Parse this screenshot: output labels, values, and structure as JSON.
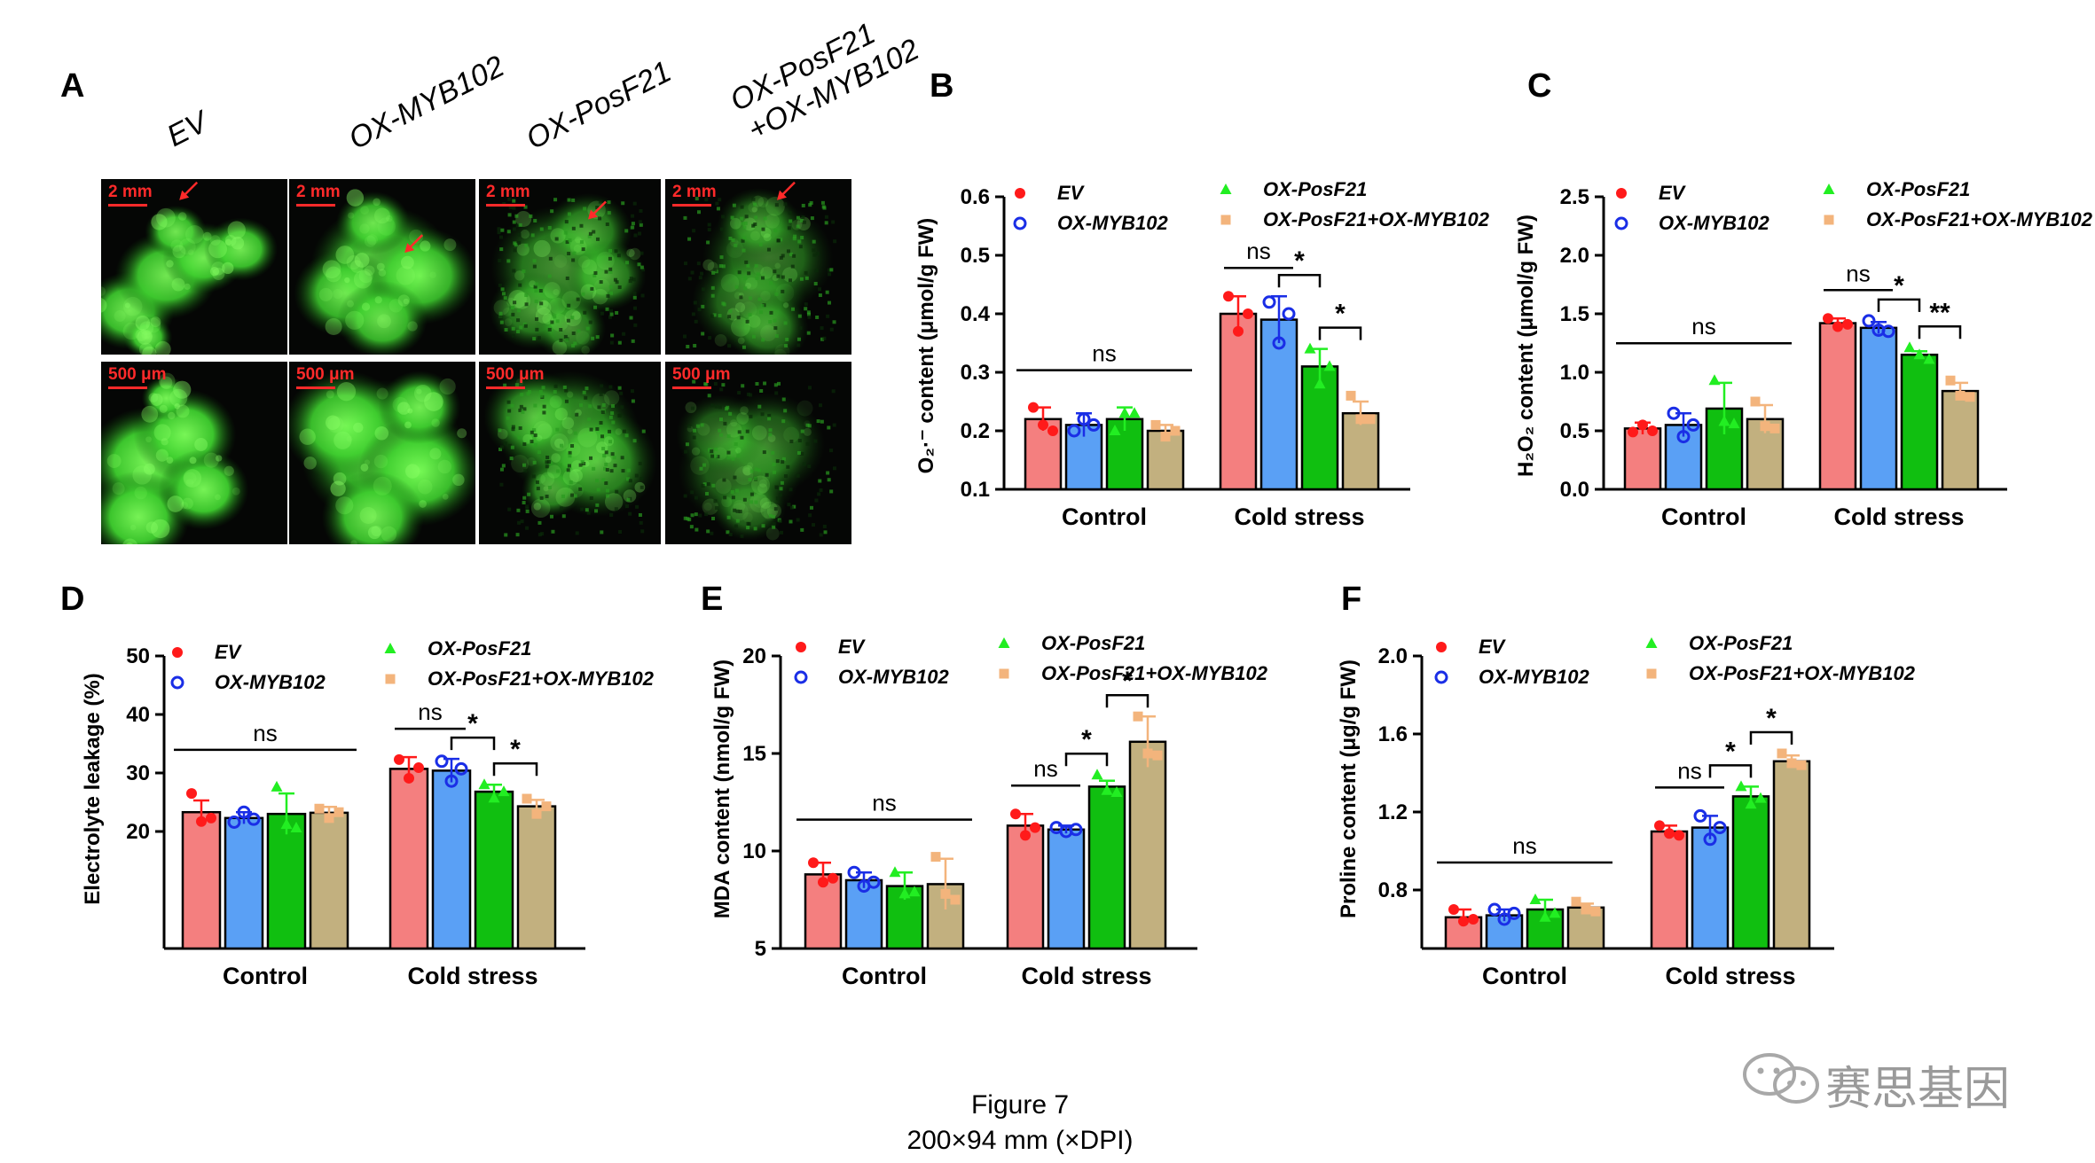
{
  "panels": {
    "A": "A",
    "B": "B",
    "C": "C",
    "D": "D",
    "E": "E",
    "F": "F"
  },
  "micrographs": {
    "genotypes": [
      "EV",
      "OX-MYB102",
      "OX-PosF21",
      "OX-PosF21\n+OX-MYB102"
    ],
    "genotype_lines": [
      [
        "EV"
      ],
      [
        "OX-MYB102"
      ],
      [
        "OX-PosF21"
      ],
      [
        "OX-PosF21",
        "+OX-MYB102"
      ]
    ],
    "scale_top": "2 mm",
    "scale_bottom": "500 μm",
    "colors": {
      "fluorescence": "#3fcf2f",
      "background": "#050605",
      "scale": "#ff2a2a"
    }
  },
  "legend": {
    "ev": "EV",
    "myb": "OX-MYB102",
    "posf": "OX-PosF21",
    "combo": "OX-PosF21+OX-MYB102"
  },
  "series_colors": {
    "ev": {
      "bar": "#f47f7f",
      "marker": "#ff1a1a"
    },
    "myb": {
      "bar": "#5aa0f5",
      "marker": "#1a2ee6"
    },
    "posf": {
      "bar": "#10bf10",
      "marker": "#22ee22"
    },
    "combo": {
      "bar": "#c2b07f",
      "marker": "#f3b47c"
    }
  },
  "chart_data": [
    {
      "id": "B",
      "type": "bar",
      "ylabel": "O₂·⁻ content (μmol/g FW)",
      "categories": [
        "Control",
        "Cold stress"
      ],
      "ylim": [
        0.1,
        0.6
      ],
      "yticks": [
        "0.1",
        "0.2",
        "0.3",
        "0.4",
        "0.5",
        "0.6"
      ],
      "series": [
        {
          "name": "EV",
          "values": [
            0.22,
            0.4
          ],
          "errors": [
            0.02,
            0.03
          ],
          "points": [
            [
              0.24,
              0.21,
              0.2
            ],
            [
              0.43,
              0.37,
              0.4
            ]
          ]
        },
        {
          "name": "OX-MYB102",
          "values": [
            0.21,
            0.39
          ],
          "errors": [
            0.02,
            0.04
          ],
          "points": [
            [
              0.2,
              0.22,
              0.21
            ],
            [
              0.42,
              0.35,
              0.4
            ]
          ]
        },
        {
          "name": "OX-PosF21",
          "values": [
            0.22,
            0.31
          ],
          "errors": [
            0.02,
            0.03
          ],
          "points": [
            [
              0.2,
              0.23,
              0.23
            ],
            [
              0.34,
              0.28,
              0.31
            ]
          ]
        },
        {
          "name": "OX-PosF21+OX-MYB102",
          "values": [
            0.2,
            0.23
          ],
          "errors": [
            0.01,
            0.02
          ],
          "points": [
            [
              0.21,
              0.19,
              0.2
            ],
            [
              0.26,
              0.22,
              0.22
            ]
          ]
        }
      ],
      "annotations": [
        {
          "text": "ns",
          "group": "control"
        },
        {
          "text": "ns",
          "pair": [
            0,
            1
          ]
        },
        {
          "text": "*",
          "pair": [
            1,
            2
          ]
        },
        {
          "text": "*",
          "pair": [
            2,
            3
          ]
        }
      ]
    },
    {
      "id": "C",
      "type": "bar",
      "ylabel": "H₂O₂ content (μmol/g FW)",
      "categories": [
        "Control",
        "Cold stress"
      ],
      "ylim": [
        0.0,
        2.5
      ],
      "yticks": [
        "0.0",
        "0.5",
        "1.0",
        "1.5",
        "2.0",
        "2.5"
      ],
      "series": [
        {
          "name": "EV",
          "values": [
            0.52,
            1.42
          ],
          "errors": [
            0.05,
            0.04
          ],
          "points": [
            [
              0.49,
              0.55,
              0.5
            ],
            [
              1.46,
              1.39,
              1.41
            ]
          ]
        },
        {
          "name": "OX-MYB102",
          "values": [
            0.55,
            1.38
          ],
          "errors": [
            0.1,
            0.05
          ],
          "points": [
            [
              0.65,
              0.45,
              0.55
            ],
            [
              1.44,
              1.36,
              1.35
            ]
          ]
        },
        {
          "name": "OX-PosF21",
          "values": [
            0.69,
            1.15
          ],
          "errors": [
            0.22,
            0.03
          ],
          "points": [
            [
              0.93,
              0.58,
              0.56
            ],
            [
              1.21,
              1.15,
              1.11
            ]
          ]
        },
        {
          "name": "OX-PosF21+OX-MYB102",
          "values": [
            0.6,
            0.84
          ],
          "errors": [
            0.12,
            0.07
          ],
          "points": [
            [
              0.75,
              0.54,
              0.52
            ],
            [
              0.93,
              0.8,
              0.79
            ]
          ]
        }
      ],
      "annotations": [
        {
          "text": "ns",
          "group": "control"
        },
        {
          "text": "ns",
          "pair": [
            0,
            1
          ]
        },
        {
          "text": "*",
          "pair": [
            1,
            2
          ]
        },
        {
          "text": "**",
          "pair": [
            2,
            3
          ]
        }
      ]
    },
    {
      "id": "D",
      "type": "bar",
      "ylabel": "Electrolyte leakage (%)",
      "categories": [
        "Control",
        "Cold stress"
      ],
      "ylim": [
        0,
        50
      ],
      "yticks": [
        "20",
        "30",
        "40",
        "50"
      ],
      "tick_values": [
        20,
        30,
        40,
        50
      ],
      "series": [
        {
          "name": "EV",
          "values": [
            23.3,
            30.7
          ],
          "errors": [
            2.0,
            2.0
          ],
          "points": [
            [
              26.5,
              21.7,
              22.3
            ],
            [
              32.3,
              29.1,
              30.9
            ]
          ]
        },
        {
          "name": "OX-MYB102",
          "values": [
            22.3,
            30.4
          ],
          "errors": [
            1.0,
            2.0
          ],
          "points": [
            [
              21.6,
              23.3,
              22.1
            ],
            [
              32.0,
              28.6,
              30.7
            ]
          ]
        },
        {
          "name": "OX-PosF21",
          "values": [
            23.0,
            26.8
          ],
          "errors": [
            3.5,
            1.2
          ],
          "points": [
            [
              27.6,
              21.2,
              20.6
            ],
            [
              28.0,
              25.7,
              26.8
            ]
          ]
        },
        {
          "name": "OX-PosF21+OX-MYB102",
          "values": [
            23.2,
            24.3
          ],
          "errors": [
            1.0,
            1.1
          ],
          "points": [
            [
              23.9,
              22.3,
              23.3
            ],
            [
              25.6,
              23.0,
              24.3
            ]
          ]
        }
      ],
      "annotations": [
        {
          "text": "ns",
          "group": "control"
        },
        {
          "text": "ns",
          "pair": [
            0,
            1
          ]
        },
        {
          "text": "*",
          "pair": [
            1,
            2
          ]
        },
        {
          "text": "*",
          "pair": [
            2,
            3
          ]
        }
      ]
    },
    {
      "id": "E",
      "type": "bar",
      "ylabel": "MDA content (nmol/g FW)",
      "categories": [
        "Control",
        "Cold stress"
      ],
      "ylim": [
        5,
        20
      ],
      "yticks": [
        "5",
        "10",
        "15",
        "20"
      ],
      "series": [
        {
          "name": "EV",
          "values": [
            8.8,
            11.3
          ],
          "errors": [
            0.6,
            0.6
          ],
          "points": [
            [
              9.4,
              8.4,
              8.6
            ],
            [
              11.9,
              10.8,
              11.2
            ]
          ]
        },
        {
          "name": "OX-MYB102",
          "values": [
            8.5,
            11.1
          ],
          "errors": [
            0.4,
            0.2
          ],
          "points": [
            [
              8.9,
              8.2,
              8.4
            ],
            [
              11.2,
              11.0,
              11.1
            ]
          ]
        },
        {
          "name": "OX-PosF21",
          "values": [
            8.2,
            13.3
          ],
          "errors": [
            0.7,
            0.3
          ],
          "points": [
            [
              8.9,
              7.8,
              7.9
            ],
            [
              13.9,
              13.1,
              13.0
            ]
          ]
        },
        {
          "name": "OX-PosF21+OX-MYB102",
          "values": [
            8.3,
            15.6
          ],
          "errors": [
            1.3,
            1.3
          ],
          "points": [
            [
              9.7,
              7.8,
              7.5
            ],
            [
              16.9,
              15.0,
              14.9
            ]
          ]
        }
      ],
      "annotations": [
        {
          "text": "ns",
          "group": "control"
        },
        {
          "text": "ns",
          "pair": [
            0,
            1
          ]
        },
        {
          "text": "*",
          "pair": [
            1,
            2
          ]
        },
        {
          "text": "*",
          "pair": [
            2,
            3
          ]
        }
      ]
    },
    {
      "id": "F",
      "type": "bar",
      "ylabel": "Proline content (μg/g FW)",
      "categories": [
        "Control",
        "Cold stress"
      ],
      "ylim": [
        0.5,
        2.0
      ],
      "yticks": [
        "0.8",
        "1.2",
        "1.6",
        "2.0"
      ],
      "tick_values": [
        0.8,
        1.2,
        1.6,
        2.0
      ],
      "series": [
        {
          "name": "EV",
          "values": [
            0.66,
            1.1
          ],
          "errors": [
            0.04,
            0.03
          ],
          "points": [
            [
              0.7,
              0.64,
              0.65
            ],
            [
              1.13,
              1.09,
              1.08
            ]
          ]
        },
        {
          "name": "OX-MYB102",
          "values": [
            0.67,
            1.12
          ],
          "errors": [
            0.03,
            0.06
          ],
          "points": [
            [
              0.7,
              0.65,
              0.68
            ],
            [
              1.18,
              1.06,
              1.12
            ]
          ]
        },
        {
          "name": "OX-PosF21",
          "values": [
            0.7,
            1.28
          ],
          "errors": [
            0.05,
            0.05
          ],
          "points": [
            [
              0.75,
              0.66,
              0.68
            ],
            [
              1.33,
              1.24,
              1.27
            ]
          ]
        },
        {
          "name": "OX-PosF21+OX-MYB102",
          "values": [
            0.71,
            1.46
          ],
          "errors": [
            0.02,
            0.03
          ],
          "points": [
            [
              0.74,
              0.7,
              0.69
            ],
            [
              1.5,
              1.45,
              1.44
            ]
          ]
        }
      ],
      "annotations": [
        {
          "text": "ns",
          "group": "control"
        },
        {
          "text": "ns",
          "pair": [
            0,
            1
          ]
        },
        {
          "text": "*",
          "pair": [
            1,
            2
          ]
        },
        {
          "text": "*",
          "pair": [
            2,
            3
          ]
        }
      ]
    }
  ],
  "caption": {
    "line1": "Figure 7",
    "line2": "200×94  mm (×DPI)"
  },
  "watermark": {
    "text": "赛思基因",
    "icon": "wechat-icon"
  }
}
